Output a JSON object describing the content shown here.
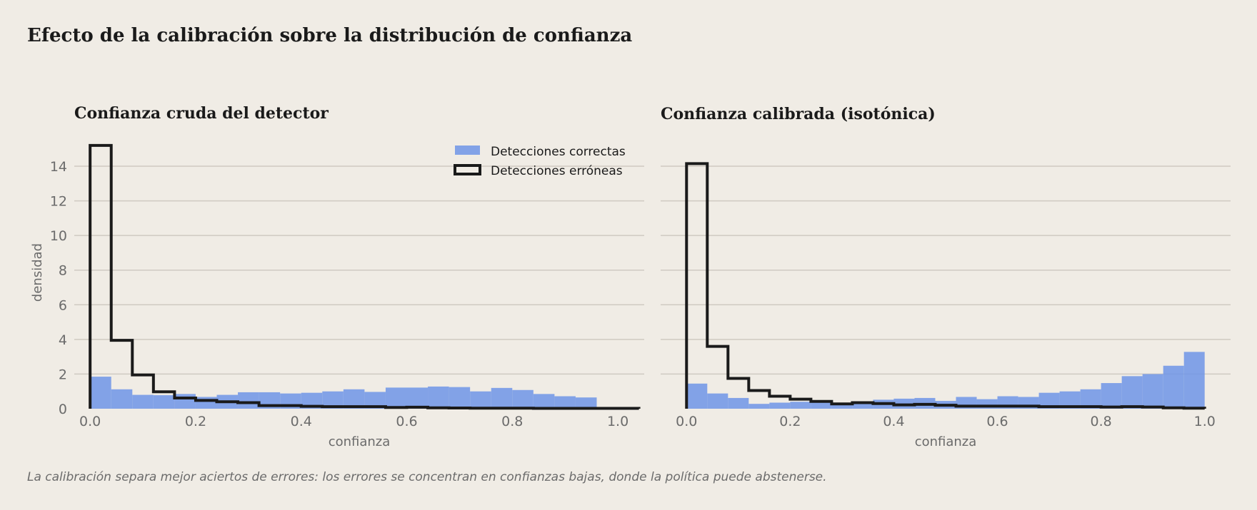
{
  "figure": {
    "title": "Efecto de la calibración sobre la distribución de confianza",
    "caption": "La calibración separa mejor aciertos de errores: los errores se concentran en confianzas bajas, donde la política puede abstenerse."
  },
  "colors": {
    "background": "#f0ece5",
    "correct": "#6f95e8",
    "errors": "#1a1a1a",
    "grid": "#cfcac2",
    "muted_text": "#6b6b6b"
  },
  "chart_data": [
    {
      "type": "histogram",
      "title": "Confianza cruda del detector",
      "xlabel": "confianza",
      "ylabel": "densidad",
      "xlim": [
        -0.03,
        1.05
      ],
      "ylim": [
        0,
        15.5
      ],
      "xticks": [
        "0.0",
        "0.2",
        "0.4",
        "0.6",
        "0.8",
        "1.0"
      ],
      "yticks": [
        "0",
        "2",
        "4",
        "6",
        "8",
        "10",
        "12",
        "14"
      ],
      "grid": "horizontal",
      "legend": {
        "position": "top-right",
        "entries": [
          "Detecciones correctas",
          "Detecciones erróneas"
        ]
      },
      "bin_width": 0.04,
      "series": [
        {
          "name": "Detecciones correctas",
          "style": "filled",
          "bin_start": 0.0,
          "values": [
            1.85,
            1.12,
            0.8,
            0.78,
            0.85,
            0.68,
            0.8,
            0.95,
            0.95,
            0.88,
            0.92,
            1.0,
            1.12,
            0.97,
            1.22,
            1.22,
            1.28,
            1.25,
            1.0,
            1.2,
            1.08,
            0.85,
            0.72,
            0.65
          ]
        },
        {
          "name": "Detecciones erróneas",
          "style": "step",
          "bin_start": 0.0,
          "values": [
            15.2,
            3.95,
            1.95,
            0.98,
            0.62,
            0.48,
            0.4,
            0.35,
            0.18,
            0.18,
            0.14,
            0.12,
            0.12,
            0.12,
            0.07,
            0.09,
            0.05,
            0.04,
            0.03,
            0.03,
            0.03,
            0.02,
            0.02,
            0.02,
            0.02,
            0.02
          ]
        }
      ]
    },
    {
      "type": "histogram",
      "title": "Confianza calibrada (isotónica)",
      "xlabel": "confianza",
      "xlim": [
        -0.05,
        1.05
      ],
      "ylim": [
        0,
        15.5
      ],
      "xticks": [
        "0.0",
        "0.2",
        "0.4",
        "0.6",
        "0.8",
        "1.0"
      ],
      "grid": "horizontal",
      "bin_width": 0.04,
      "series": [
        {
          "name": "Detecciones correctas",
          "style": "filled",
          "bin_start": 0.0,
          "values": [
            1.45,
            0.88,
            0.62,
            0.28,
            0.35,
            0.4,
            0.38,
            0.35,
            0.42,
            0.52,
            0.58,
            0.62,
            0.45,
            0.68,
            0.55,
            0.72,
            0.68,
            0.92,
            1.0,
            1.12,
            1.48,
            1.88,
            2.0,
            2.48,
            3.28
          ]
        },
        {
          "name": "Detecciones erróneas",
          "style": "step",
          "bin_start": 0.0,
          "values": [
            14.15,
            3.6,
            1.75,
            1.05,
            0.72,
            0.55,
            0.42,
            0.28,
            0.35,
            0.3,
            0.22,
            0.25,
            0.2,
            0.15,
            0.15,
            0.15,
            0.15,
            0.12,
            0.12,
            0.12,
            0.1,
            0.12,
            0.1,
            0.05,
            0.03
          ]
        }
      ]
    }
  ]
}
